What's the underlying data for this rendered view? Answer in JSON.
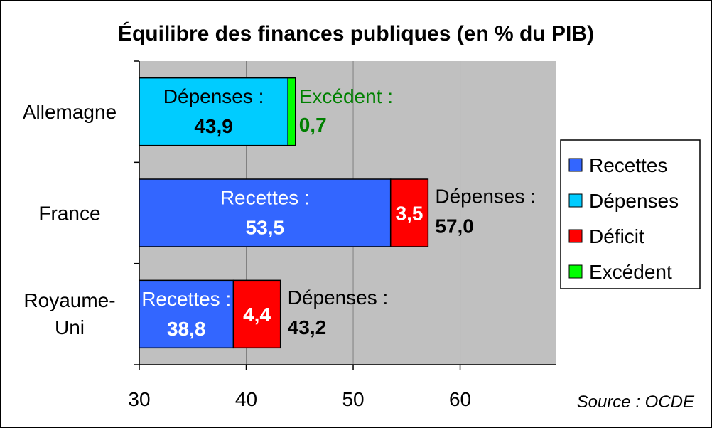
{
  "chart_data": {
    "type": "bar",
    "orientation": "horizontal",
    "stacked": true,
    "title": "Équilibre des finances publiques (en % du PIB)",
    "source": "Source : OCDE",
    "xlim": [
      30,
      69
    ],
    "xticks": [
      "30",
      "40",
      "50",
      "60"
    ],
    "xtick_values": [
      30,
      40,
      50,
      60
    ],
    "grid": true,
    "legend_position": "right",
    "categories": [
      {
        "name": "Allemagne",
        "segments": [
          {
            "series": "Dépenses",
            "start": 30,
            "end": 43.9,
            "label_top": "Dépenses :",
            "label_value": "43,9",
            "label_color": "#000000",
            "label_place": "inside"
          },
          {
            "series": "Excédent",
            "start": 43.9,
            "end": 44.6,
            "label_top": "Excédent :",
            "label_value": "0,7",
            "label_color": "#008000",
            "label_place": "after"
          }
        ]
      },
      {
        "name": "France",
        "segments": [
          {
            "series": "Recettes",
            "start": 30,
            "end": 53.5,
            "label_top": "Recettes :",
            "label_value": "53,5",
            "label_color": "#ffffff",
            "label_place": "inside"
          },
          {
            "series": "Déficit",
            "start": 53.5,
            "end": 57.0,
            "label_top": "",
            "label_value": "3,5",
            "label_color": "#ffffff",
            "label_place": "inside"
          }
        ],
        "total_label_top": "Dépenses :",
        "total_label_value": "57,0"
      },
      {
        "name": "Royaume-Uni",
        "name_lines": [
          "Royaume-",
          "Uni"
        ],
        "segments": [
          {
            "series": "Recettes",
            "start": 30,
            "end": 38.8,
            "label_top": "Recettes :",
            "label_value": "38,8",
            "label_color": "#ffffff",
            "label_place": "inside"
          },
          {
            "series": "Déficit",
            "start": 38.8,
            "end": 43.2,
            "label_top": "",
            "label_value": "4,4",
            "label_color": "#ffffff",
            "label_place": "inside"
          }
        ],
        "total_label_top": "Dépenses :",
        "total_label_value": "43,2"
      }
    ],
    "legend": [
      {
        "name": "Recettes",
        "color": "#3366ff"
      },
      {
        "name": "Dépenses",
        "color": "#00ccff"
      },
      {
        "name": "Déficit",
        "color": "#ff0000"
      },
      {
        "name": "Excédent",
        "color": "#00ff00"
      }
    ],
    "colors": {
      "Recettes": "#3366ff",
      "Dépenses": "#00ccff",
      "Déficit": "#ff0000",
      "Excédent": "#00ff00",
      "plot_background": "#c0c0c0",
      "gridline": "#808080"
    }
  }
}
